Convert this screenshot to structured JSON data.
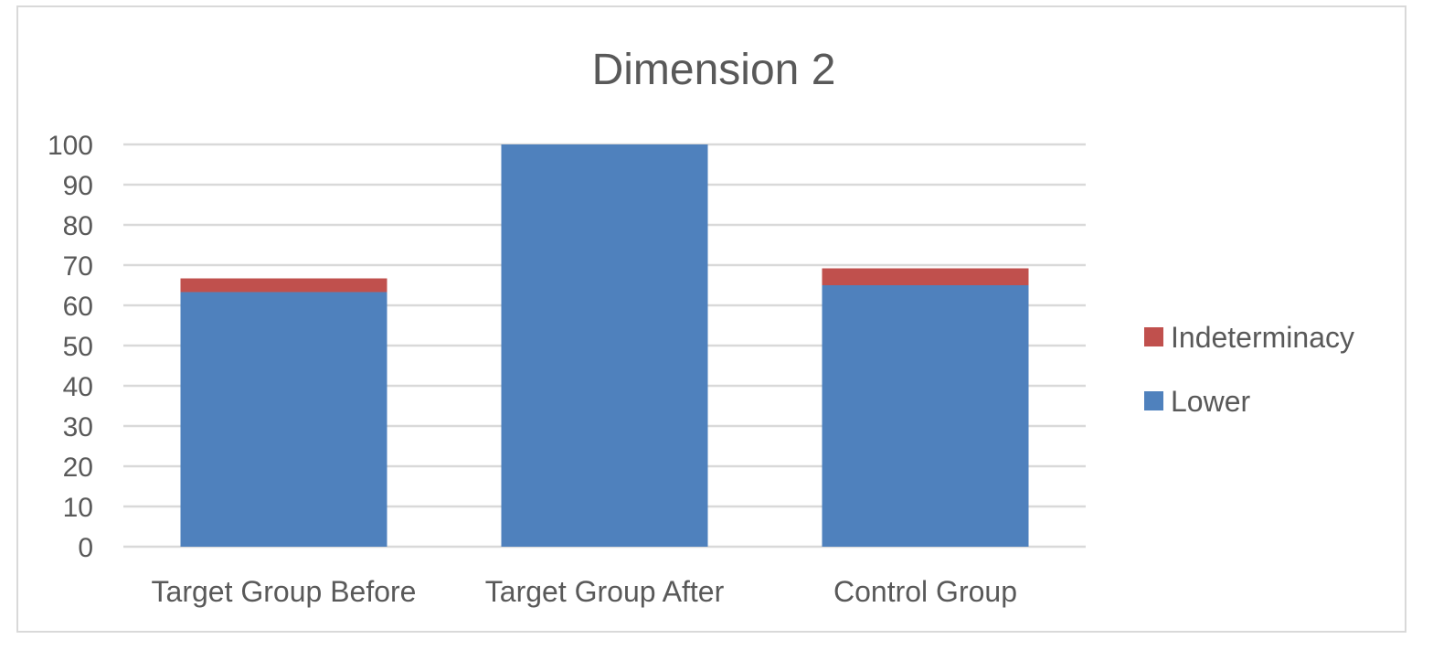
{
  "chart_data": {
    "type": "bar",
    "stacked": true,
    "title": "Dimension 2",
    "categories": [
      "Target Group Before",
      "Target Group After",
      "Control Group"
    ],
    "series": [
      {
        "name": "Lower",
        "values": [
          63.3,
          100,
          65
        ],
        "color": "#4f81bd"
      },
      {
        "name": "Indeterminacy",
        "values": [
          3.4,
          0,
          4.2
        ],
        "color": "#c0504d"
      }
    ],
    "ylim": [
      0,
      100
    ],
    "yticks": [
      0,
      10,
      20,
      30,
      40,
      50,
      60,
      70,
      80,
      90,
      100
    ],
    "grid": true,
    "legend_position": "right",
    "legend_order": [
      "Indeterminacy",
      "Lower"
    ]
  }
}
